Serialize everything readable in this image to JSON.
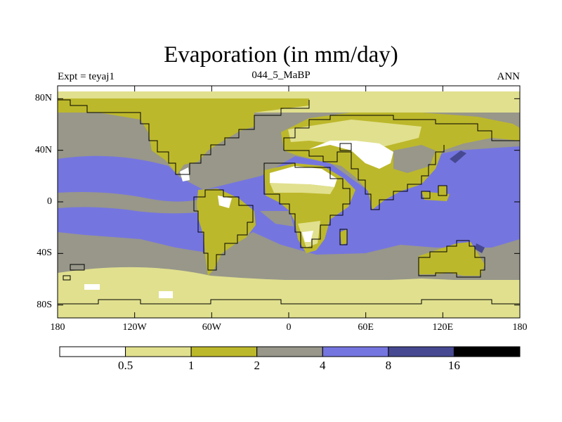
{
  "title": "Evaporation (in mm/day)",
  "left_label": "Expt = teyaj1",
  "center_label": "044_5_MaBP",
  "right_label": "ANN",
  "lat_ticks": [
    {
      "label": "80N",
      "lat": 80
    },
    {
      "label": "40N",
      "lat": 40
    },
    {
      "label": "0",
      "lat": 0
    },
    {
      "label": "40S",
      "lat": -40
    },
    {
      "label": "80S",
      "lat": -80
    }
  ],
  "lon_ticks": [
    {
      "label": "180",
      "lon": -180
    },
    {
      "label": "120W",
      "lon": -120
    },
    {
      "label": "60W",
      "lon": -60
    },
    {
      "label": "0",
      "lon": 0
    },
    {
      "label": "60E",
      "lon": 60
    },
    {
      "label": "120E",
      "lon": 120
    },
    {
      "label": "180",
      "lon": 180
    }
  ],
  "colorbar": {
    "levels": [
      "0.5",
      "1",
      "2",
      "4",
      "8",
      "16"
    ],
    "colors": [
      "#ffffff",
      "#e1e08e",
      "#bcb82b",
      "#98978a",
      "#7575e0",
      "#464892",
      "#000000"
    ]
  },
  "map_colors": {
    "very_low": "#ffffff",
    "low": "#e1e08e",
    "land_mid": "#bcb82b",
    "mid": "#98978a",
    "ocean_high": "#7575e0",
    "very_high": "#464892"
  }
}
